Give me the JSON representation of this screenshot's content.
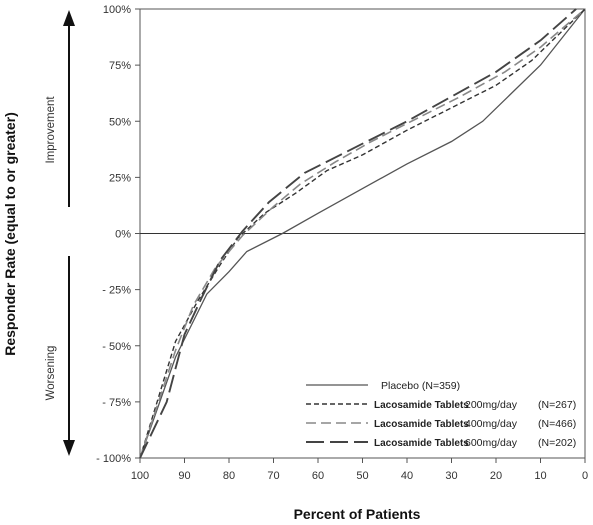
{
  "chart_data": {
    "type": "line",
    "title": "",
    "xlabel": "Percent of Patients",
    "ylabel": "Responder Rate (equal to or greater)",
    "xlim": [
      100,
      0
    ],
    "ylim": [
      -100,
      100
    ],
    "x_ticks": [
      100,
      90,
      80,
      70,
      60,
      50,
      40,
      30,
      20,
      10,
      0
    ],
    "y_ticks": [
      {
        "value": 100,
        "label": "100%"
      },
      {
        "value": 75,
        "label": "75%"
      },
      {
        "value": 50,
        "label": "50%"
      },
      {
        "value": 25,
        "label": "25%"
      },
      {
        "value": 0,
        "label": "0%"
      },
      {
        "value": -25,
        "label": "- 25%"
      },
      {
        "value": -50,
        "label": "- 50%"
      },
      {
        "value": -75,
        "label": "- 75%"
      },
      {
        "value": -100,
        "label": "- 100%"
      }
    ],
    "improvement_label": "Improvement",
    "worsening_label": "Worsening",
    "legend_position": "bottom-right",
    "series": [
      {
        "name": "Placebo (N=359)",
        "prefix": "",
        "dose": "",
        "n": "",
        "dash": "solid",
        "color": "#555555",
        "points": [
          [
            100,
            -100
          ],
          [
            92,
            -55
          ],
          [
            85,
            -27
          ],
          [
            80,
            -17
          ],
          [
            76,
            -8
          ],
          [
            68,
            0
          ],
          [
            60,
            9
          ],
          [
            50,
            20
          ],
          [
            40,
            31
          ],
          [
            30,
            41
          ],
          [
            23,
            50
          ],
          [
            10,
            75
          ],
          [
            0,
            100
          ]
        ]
      },
      {
        "name": "Lacosamide Tablets 200mg/day",
        "prefix": "Lacosamide Tablets",
        "dose": "200mg/day",
        "n": "(N=267)",
        "dash": "short",
        "color": "#333333",
        "points": [
          [
            100,
            -100
          ],
          [
            92,
            -48
          ],
          [
            87,
            -30
          ],
          [
            82,
            -14
          ],
          [
            78,
            -2
          ],
          [
            72,
            9
          ],
          [
            65,
            18
          ],
          [
            58,
            28
          ],
          [
            50,
            35
          ],
          [
            40,
            46
          ],
          [
            30,
            56
          ],
          [
            20,
            66
          ],
          [
            12,
            77
          ],
          [
            0,
            100
          ]
        ]
      },
      {
        "name": "Lacosamide Tablets 400mg/day",
        "prefix": "Lacosamide Tablets",
        "dose": "400mg/day",
        "n": "(N=466)",
        "dash": "medium",
        "color": "#888888",
        "points": [
          [
            100,
            -100
          ],
          [
            92,
            -52
          ],
          [
            88,
            -32
          ],
          [
            83,
            -15
          ],
          [
            77,
            -1
          ],
          [
            70,
            12
          ],
          [
            64,
            22
          ],
          [
            56,
            32
          ],
          [
            48,
            41
          ],
          [
            38,
            51
          ],
          [
            28,
            61
          ],
          [
            18,
            72
          ],
          [
            10,
            83
          ],
          [
            0,
            100
          ]
        ]
      },
      {
        "name": "Lacosamide Tablets 600mg/day",
        "prefix": "Lacosamide Tablets",
        "dose": "600mg/day",
        "n": "(N=202)",
        "dash": "long",
        "color": "#444444",
        "points": [
          [
            100,
            -100
          ],
          [
            94,
            -75
          ],
          [
            90,
            -45
          ],
          [
            86,
            -28
          ],
          [
            82,
            -12
          ],
          [
            77,
            1
          ],
          [
            71,
            14
          ],
          [
            63,
            27
          ],
          [
            56,
            34
          ],
          [
            50,
            40
          ],
          [
            40,
            50
          ],
          [
            30,
            61
          ],
          [
            20,
            72
          ],
          [
            10,
            86
          ],
          [
            2,
            100
          ]
        ]
      }
    ]
  }
}
